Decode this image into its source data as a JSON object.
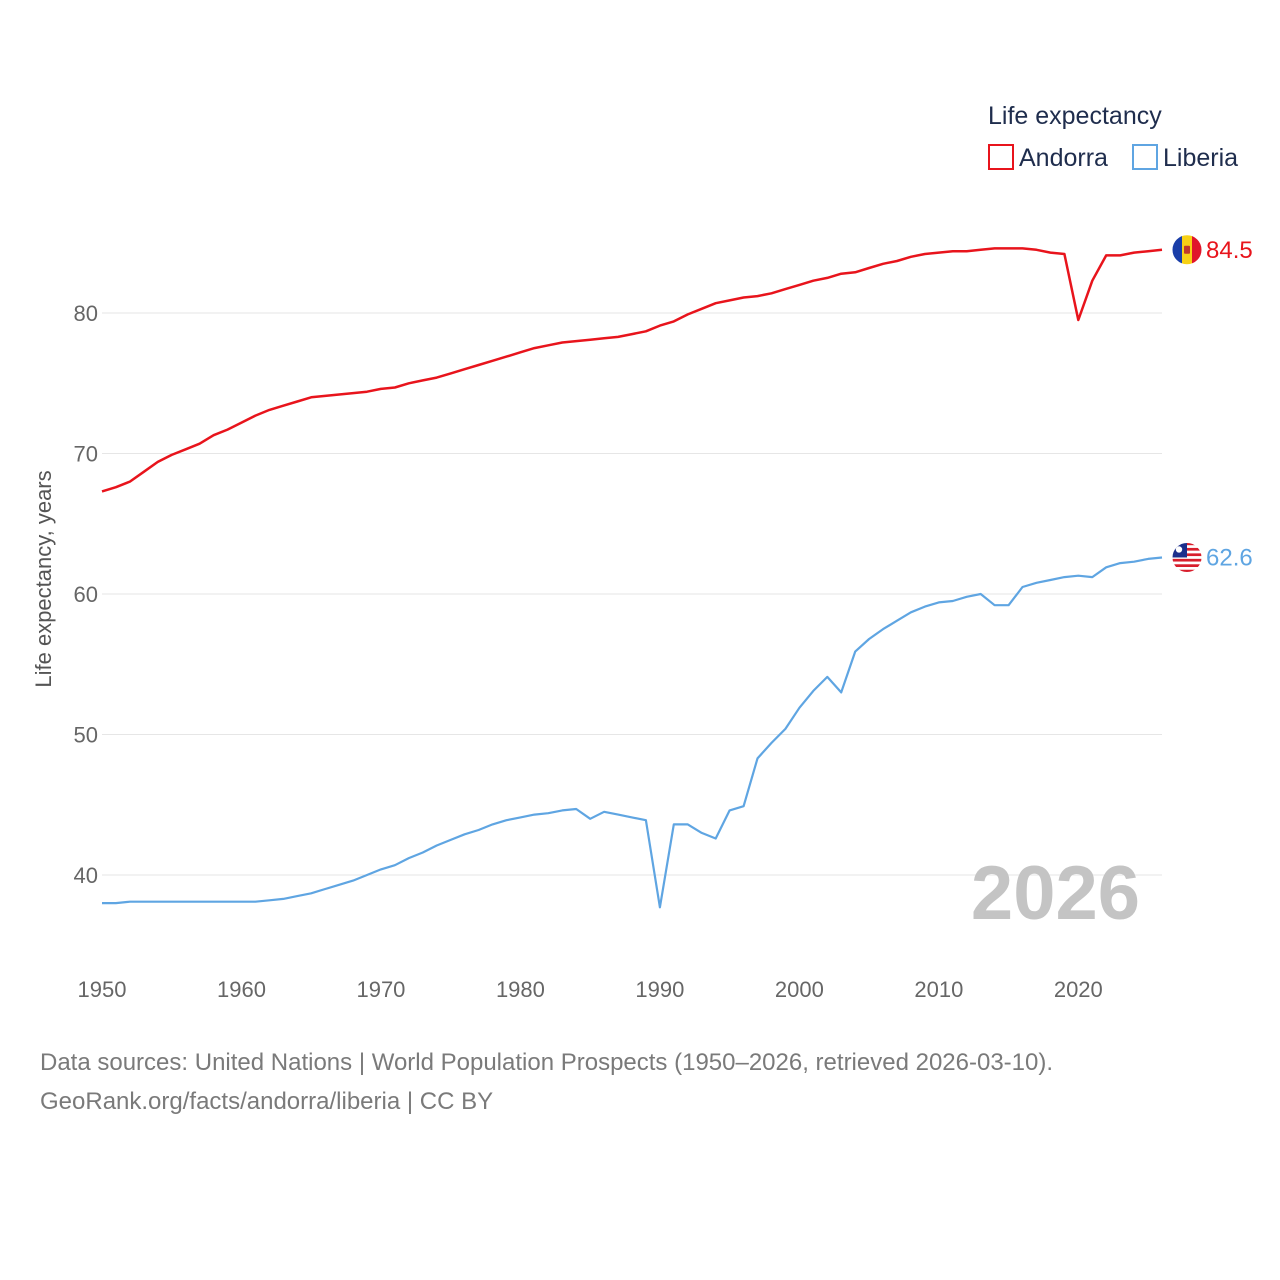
{
  "chart_data": {
    "type": "line",
    "ylabel": "Life expectancy, years",
    "xlabel": "",
    "ylim": [
      35,
      87
    ],
    "xlim": [
      1950,
      2026
    ],
    "y_ticks": [
      "40",
      "50",
      "60",
      "70",
      "80"
    ],
    "x_ticks": [
      "1950",
      "1960",
      "1970",
      "1980",
      "1990",
      "2000",
      "2010",
      "2020"
    ],
    "grid": true,
    "legend_title": "Life expectancy",
    "legend_position": "top-right",
    "year_watermark": "2026",
    "series": [
      {
        "name": "Andorra",
        "color": "#e8141c",
        "end_label": "84.5",
        "flag": "andorra-flag",
        "x": [
          1950,
          1951,
          1952,
          1953,
          1954,
          1955,
          1956,
          1957,
          1958,
          1959,
          1960,
          1961,
          1962,
          1963,
          1964,
          1965,
          1966,
          1967,
          1968,
          1969,
          1970,
          1971,
          1972,
          1973,
          1974,
          1975,
          1976,
          1977,
          1978,
          1979,
          1980,
          1981,
          1982,
          1983,
          1984,
          1985,
          1986,
          1987,
          1988,
          1989,
          1990,
          1991,
          1992,
          1993,
          1994,
          1995,
          1996,
          1997,
          1998,
          1999,
          2000,
          2001,
          2002,
          2003,
          2004,
          2005,
          2006,
          2007,
          2008,
          2009,
          2010,
          2011,
          2012,
          2013,
          2014,
          2015,
          2016,
          2017,
          2018,
          2019,
          2020,
          2021,
          2022,
          2023,
          2024,
          2025,
          2026
        ],
        "values": [
          67.3,
          67.6,
          68.0,
          68.7,
          69.4,
          69.9,
          70.3,
          70.7,
          71.3,
          71.7,
          72.2,
          72.7,
          73.1,
          73.4,
          73.7,
          74.0,
          74.1,
          74.2,
          74.3,
          74.4,
          74.6,
          74.7,
          75.0,
          75.2,
          75.4,
          75.7,
          76.0,
          76.3,
          76.6,
          76.9,
          77.2,
          77.5,
          77.7,
          77.9,
          78.0,
          78.1,
          78.2,
          78.3,
          78.5,
          78.7,
          79.1,
          79.4,
          79.9,
          80.3,
          80.7,
          80.9,
          81.1,
          81.2,
          81.4,
          81.7,
          82.0,
          82.3,
          82.5,
          82.8,
          82.9,
          83.2,
          83.5,
          83.7,
          84.0,
          84.2,
          84.3,
          84.4,
          84.4,
          84.5,
          84.6,
          84.6,
          84.6,
          84.5,
          84.3,
          84.2,
          79.5,
          82.3,
          84.1,
          84.1,
          84.3,
          84.4,
          84.5
        ]
      },
      {
        "name": "Liberia",
        "color": "#5fa5e2",
        "end_label": "62.6",
        "flag": "liberia-flag",
        "x": [
          1950,
          1951,
          1952,
          1953,
          1954,
          1955,
          1956,
          1957,
          1958,
          1959,
          1960,
          1961,
          1962,
          1963,
          1964,
          1965,
          1966,
          1967,
          1968,
          1969,
          1970,
          1971,
          1972,
          1973,
          1974,
          1975,
          1976,
          1977,
          1978,
          1979,
          1980,
          1981,
          1982,
          1983,
          1984,
          1985,
          1986,
          1987,
          1988,
          1989,
          1990,
          1991,
          1992,
          1993,
          1994,
          1995,
          1996,
          1997,
          1998,
          1999,
          2000,
          2001,
          2002,
          2003,
          2004,
          2005,
          2006,
          2007,
          2008,
          2009,
          2010,
          2011,
          2012,
          2013,
          2014,
          2015,
          2016,
          2017,
          2018,
          2019,
          2020,
          2021,
          2022,
          2023,
          2024,
          2025,
          2026
        ],
        "values": [
          38.0,
          38.0,
          38.1,
          38.1,
          38.1,
          38.1,
          38.1,
          38.1,
          38.1,
          38.1,
          38.1,
          38.1,
          38.2,
          38.3,
          38.5,
          38.7,
          39.0,
          39.3,
          39.6,
          40.0,
          40.4,
          40.7,
          41.2,
          41.6,
          42.1,
          42.5,
          42.9,
          43.2,
          43.6,
          43.9,
          44.1,
          44.3,
          44.4,
          44.6,
          44.7,
          44.0,
          44.5,
          44.3,
          44.1,
          43.9,
          37.7,
          43.6,
          43.6,
          43.0,
          42.6,
          44.6,
          44.9,
          48.3,
          49.4,
          50.4,
          51.9,
          53.1,
          54.1,
          53.0,
          55.9,
          56.8,
          57.5,
          58.1,
          58.7,
          59.1,
          59.4,
          59.5,
          59.8,
          60.0,
          59.2,
          59.2,
          60.5,
          60.8,
          61.0,
          61.2,
          61.3,
          61.2,
          61.9,
          62.2,
          62.3,
          62.5,
          62.6
        ]
      }
    ]
  },
  "footer": {
    "line1": "Data sources: United Nations | World Population Prospects (1950–2026, retrieved 2026-03-10).",
    "line2": "GeoRank.org/facts/andorra/liberia | CC BY"
  }
}
